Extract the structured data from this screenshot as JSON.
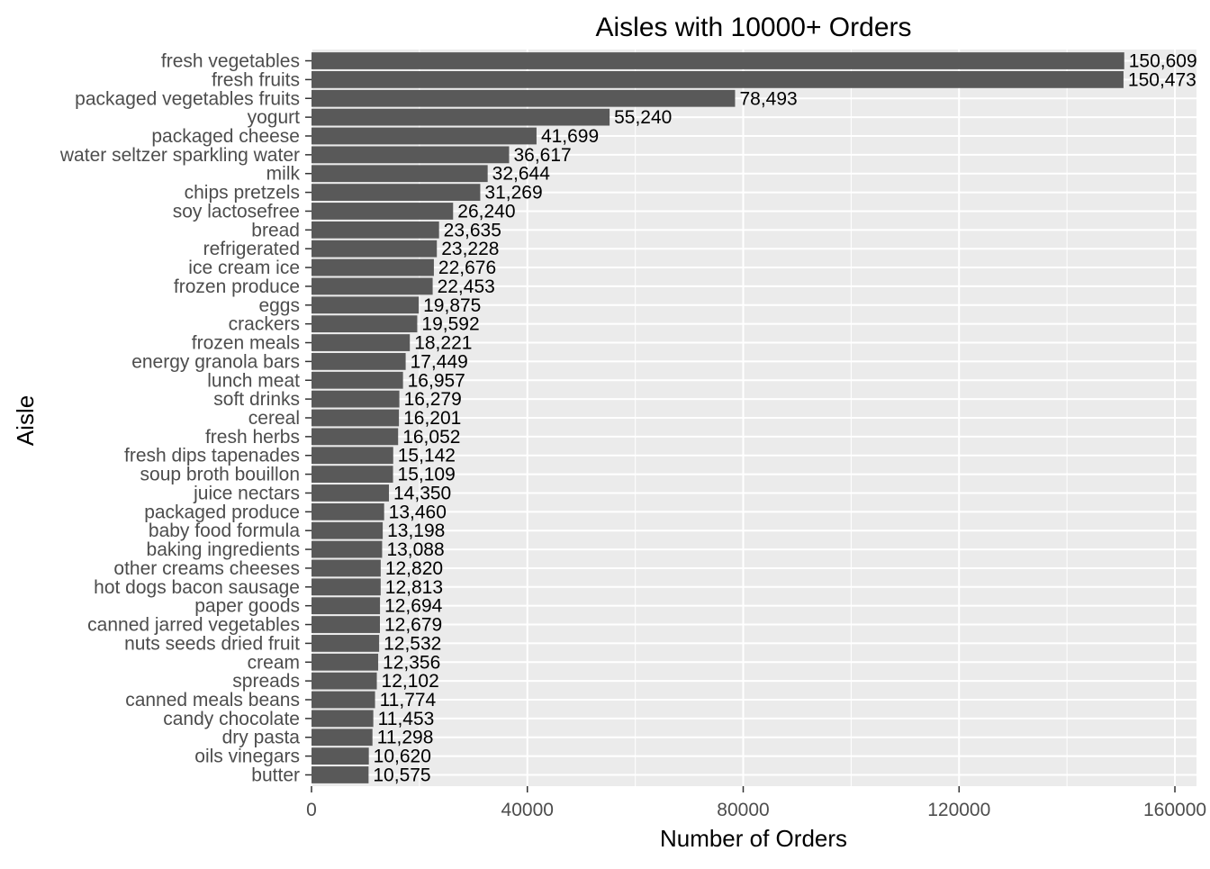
{
  "chart_data": {
    "type": "bar",
    "orientation": "horizontal",
    "title": "Aisles with 10000+ Orders",
    "xlabel": "Number of Orders",
    "ylabel": "Aisle",
    "xlim": [
      0,
      164000
    ],
    "x_ticks": [
      0,
      40000,
      80000,
      120000,
      160000
    ],
    "x_tick_labels": [
      "0",
      "40000",
      "80000",
      "120000",
      "160000"
    ],
    "grid": true,
    "categories": [
      "fresh vegetables",
      "fresh fruits",
      "packaged vegetables fruits",
      "yogurt",
      "packaged cheese",
      "water seltzer sparkling water",
      "milk",
      "chips pretzels",
      "soy lactosefree",
      "bread",
      "refrigerated",
      "ice cream ice",
      "frozen produce",
      "eggs",
      "crackers",
      "frozen meals",
      "energy granola bars",
      "lunch meat",
      "soft drinks",
      "cereal",
      "fresh herbs",
      "fresh dips tapenades",
      "soup broth bouillon",
      "juice nectars",
      "packaged produce",
      "baby food formula",
      "baking ingredients",
      "other creams cheeses",
      "hot dogs bacon sausage",
      "paper goods",
      "canned jarred vegetables",
      "nuts seeds dried fruit",
      "cream",
      "spreads",
      "canned meals beans",
      "candy chocolate",
      "dry pasta",
      "oils vinegars",
      "butter"
    ],
    "values": [
      150609,
      150473,
      78493,
      55240,
      41699,
      36617,
      32644,
      31269,
      26240,
      23635,
      23228,
      22676,
      22453,
      19875,
      19592,
      18221,
      17449,
      16957,
      16279,
      16201,
      16052,
      15142,
      15109,
      14350,
      13460,
      13198,
      13088,
      12820,
      12813,
      12694,
      12679,
      12532,
      12356,
      12102,
      11774,
      11453,
      11298,
      10620,
      10575
    ],
    "value_labels": [
      "150,609",
      "150,473",
      "78,493",
      "55,240",
      "41,699",
      "36,617",
      "32,644",
      "31,269",
      "26,240",
      "23,635",
      "23,228",
      "22,676",
      "22,453",
      "19,875",
      "19,592",
      "18,221",
      "17,449",
      "16,957",
      "16,279",
      "16,201",
      "16,052",
      "15,142",
      "15,109",
      "14,350",
      "13,460",
      "13,198",
      "13,088",
      "12,820",
      "12,813",
      "12,694",
      "12,679",
      "12,532",
      "12,356",
      "12,102",
      "11,774",
      "11,453",
      "11,298",
      "10,620",
      "10,575"
    ],
    "colors": {
      "bar": "#595959",
      "panel": "#ebebeb",
      "grid_major": "#ffffff",
      "tick_text": "#4d4d4d",
      "text": "#000000"
    }
  }
}
